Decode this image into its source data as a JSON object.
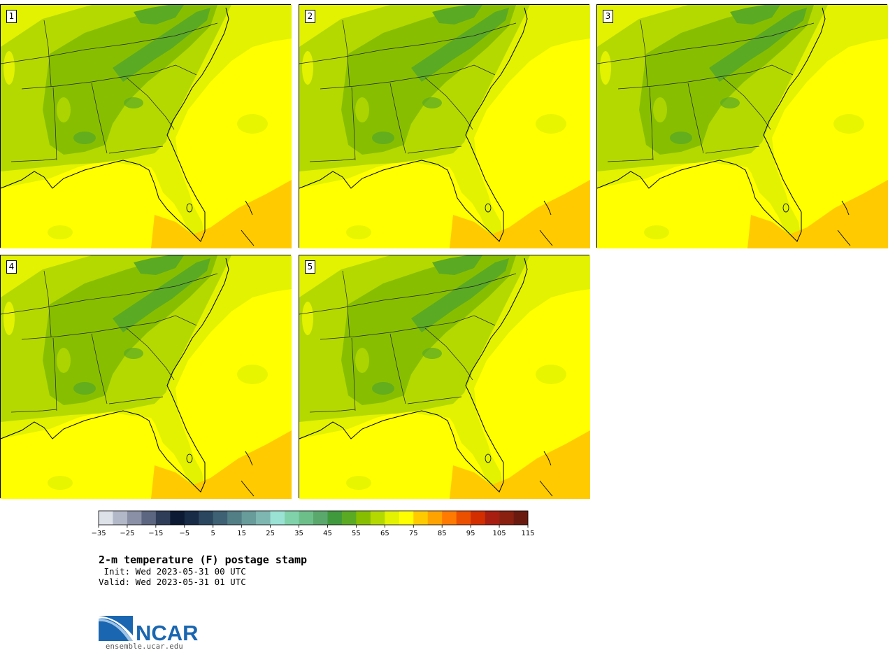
{
  "panels": [
    {
      "label": "1"
    },
    {
      "label": "2"
    },
    {
      "label": "3"
    },
    {
      "label": "4"
    },
    {
      "label": "5"
    }
  ],
  "colorbar": {
    "unit": "F",
    "tick_labels": [
      "−35",
      "−25",
      "−15",
      "−5",
      "5",
      "15",
      "25",
      "35",
      "45",
      "55",
      "65",
      "75",
      "85",
      "95",
      "105",
      "115"
    ],
    "colors": [
      "#dde1e8",
      "#b3b8c8",
      "#8a91a6",
      "#5c6680",
      "#303d59",
      "#0c1a33",
      "#182c48",
      "#2b475f",
      "#3e6173",
      "#527e86",
      "#679c9b",
      "#7eb7b1",
      "#99e2d4",
      "#80d2aa",
      "#6dbf8a",
      "#5ba86d",
      "#409a3d",
      "#5aaa23",
      "#87bf00",
      "#b4d900",
      "#e2f200",
      "#ffff00",
      "#ffcb00",
      "#ffa300",
      "#ff7a00",
      "#ea5000",
      "#d22e00",
      "#a81e10",
      "#892010",
      "#6b1a10"
    ]
  },
  "title": "2-m temperature (F) postage stamp",
  "init": " Init: Wed 2023-05-31 00 UTC",
  "valid": "Valid: Wed 2023-05-31 01 UTC",
  "logo_text": "NCAR",
  "url": "ensemble.ucar.edu",
  "map_colors": {
    "band_60": "#87bf00",
    "band_65": "#b4d900",
    "band_70": "#e2f200",
    "band_75": "#ffff00",
    "band_80": "#ffcb00",
    "band_55": "#5aaa23"
  }
}
